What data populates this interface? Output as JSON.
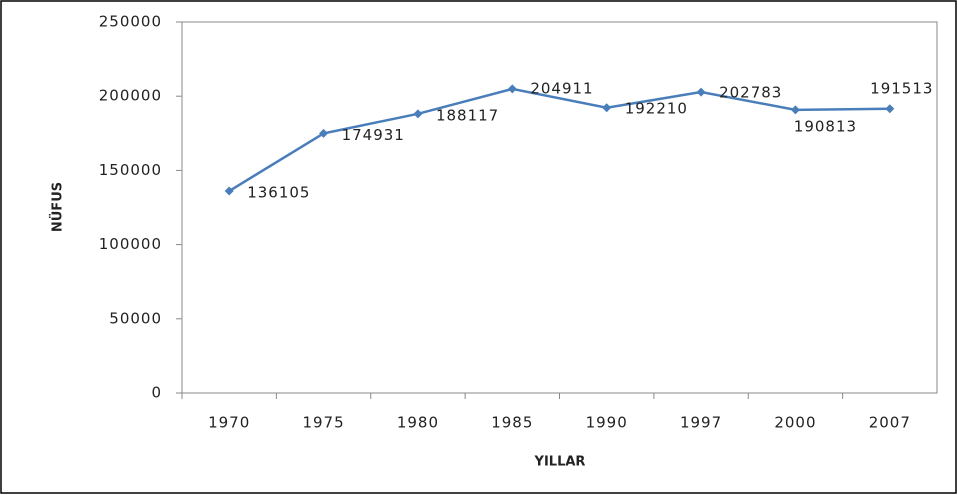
{
  "chart_data": {
    "type": "line",
    "x_label": "YILLAR",
    "y_label": "NÜFUS",
    "categories": [
      "1970",
      "1975",
      "1980",
      "1985",
      "1990",
      "1997",
      "2000",
      "2007"
    ],
    "series": [
      {
        "name": "NÜFUS",
        "color": "#4a7ebb",
        "values": [
          136105,
          174931,
          188117,
          204911,
          192210,
          202783,
          190813,
          191513
        ]
      }
    ],
    "ylim": [
      0,
      250000
    ],
    "yticks": [
      0,
      50000,
      100000,
      150000,
      200000,
      250000
    ],
    "grid": false,
    "data_labels": true
  }
}
